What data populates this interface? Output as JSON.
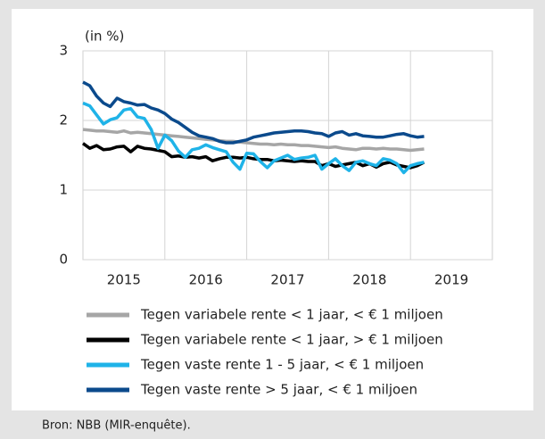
{
  "chart_data": {
    "type": "line",
    "unit_label": "(in %)",
    "source": "Bron: NBB (MIR-enquête).",
    "x": [
      2015,
      2015.083,
      2015.167,
      2015.25,
      2015.333,
      2015.417,
      2015.5,
      2015.583,
      2015.667,
      2015.75,
      2015.833,
      2015.917,
      2016,
      2016.083,
      2016.167,
      2016.25,
      2016.333,
      2016.417,
      2016.5,
      2016.583,
      2016.667,
      2016.75,
      2016.833,
      2016.917,
      2017,
      2017.083,
      2017.167,
      2017.25,
      2017.333,
      2017.417,
      2017.5,
      2017.583,
      2017.667,
      2017.75,
      2017.833,
      2017.917,
      2018,
      2018.083,
      2018.167,
      2018.25,
      2018.333,
      2018.417,
      2018.5,
      2018.583,
      2018.667,
      2018.75,
      2018.833,
      2018.917,
      2019,
      2019.083,
      2019.167
    ],
    "xlim": [
      2015,
      2020
    ],
    "xticks": [
      {
        "value": 2015.5,
        "label": "2015"
      },
      {
        "value": 2016.5,
        "label": "2016"
      },
      {
        "value": 2017.5,
        "label": "2017"
      },
      {
        "value": 2018.5,
        "label": "2018"
      },
      {
        "value": 2019.5,
        "label": "2019"
      }
    ],
    "xgrid": [
      2016,
      2017,
      2018,
      2019
    ],
    "ylim": [
      0,
      3
    ],
    "yticks": [
      0,
      1,
      2,
      3
    ],
    "grid": true,
    "legend": "bottom",
    "series": [
      {
        "name": "Tegen variabele rente < 1 jaar, < € 1 miljoen",
        "color": "#a6a6a6",
        "values": [
          1.87,
          1.86,
          1.85,
          1.85,
          1.84,
          1.83,
          1.85,
          1.82,
          1.83,
          1.82,
          1.81,
          1.8,
          1.79,
          1.78,
          1.77,
          1.76,
          1.75,
          1.74,
          1.73,
          1.72,
          1.71,
          1.7,
          1.7,
          1.69,
          1.68,
          1.67,
          1.66,
          1.66,
          1.65,
          1.66,
          1.65,
          1.65,
          1.64,
          1.64,
          1.63,
          1.62,
          1.61,
          1.62,
          1.6,
          1.59,
          1.58,
          1.6,
          1.6,
          1.59,
          1.6,
          1.59,
          1.59,
          1.58,
          1.57,
          1.58,
          1.59
        ]
      },
      {
        "name": "Tegen variabele rente < 1 jaar, > € 1 miljoen",
        "color": "#000000",
        "values": [
          1.67,
          1.6,
          1.64,
          1.58,
          1.59,
          1.62,
          1.63,
          1.55,
          1.63,
          1.6,
          1.59,
          1.57,
          1.55,
          1.48,
          1.49,
          1.47,
          1.48,
          1.46,
          1.48,
          1.42,
          1.45,
          1.47,
          1.47,
          1.46,
          1.47,
          1.45,
          1.44,
          1.44,
          1.42,
          1.43,
          1.42,
          1.41,
          1.42,
          1.41,
          1.41,
          1.35,
          1.38,
          1.34,
          1.36,
          1.38,
          1.4,
          1.35,
          1.38,
          1.33,
          1.38,
          1.4,
          1.36,
          1.34,
          1.32,
          1.35,
          1.4
        ]
      },
      {
        "name": "Tegen vaste rente 1 - 5  jaar, < € 1 miljoen",
        "color": "#1fb3e8",
        "values": [
          2.25,
          2.21,
          2.08,
          1.95,
          2.01,
          2.04,
          2.15,
          2.17,
          2.05,
          2.03,
          1.87,
          1.6,
          1.79,
          1.71,
          1.56,
          1.47,
          1.58,
          1.6,
          1.65,
          1.61,
          1.58,
          1.55,
          1.4,
          1.3,
          1.53,
          1.52,
          1.41,
          1.32,
          1.42,
          1.46,
          1.5,
          1.44,
          1.46,
          1.47,
          1.5,
          1.3,
          1.38,
          1.45,
          1.35,
          1.28,
          1.4,
          1.42,
          1.38,
          1.35,
          1.45,
          1.43,
          1.38,
          1.25,
          1.35,
          1.38,
          1.4
        ]
      },
      {
        "name": "Tegen vaste rente >  5 jaar, < € 1 miljoen",
        "color": "#0b4a8c",
        "values": [
          2.55,
          2.5,
          2.35,
          2.25,
          2.2,
          2.32,
          2.27,
          2.25,
          2.22,
          2.23,
          2.18,
          2.15,
          2.1,
          2.02,
          1.97,
          1.9,
          1.83,
          1.78,
          1.76,
          1.74,
          1.7,
          1.68,
          1.68,
          1.7,
          1.72,
          1.76,
          1.78,
          1.8,
          1.82,
          1.83,
          1.84,
          1.85,
          1.85,
          1.84,
          1.82,
          1.81,
          1.77,
          1.82,
          1.84,
          1.79,
          1.81,
          1.78,
          1.77,
          1.76,
          1.76,
          1.78,
          1.8,
          1.81,
          1.78,
          1.76,
          1.77
        ]
      }
    ]
  }
}
